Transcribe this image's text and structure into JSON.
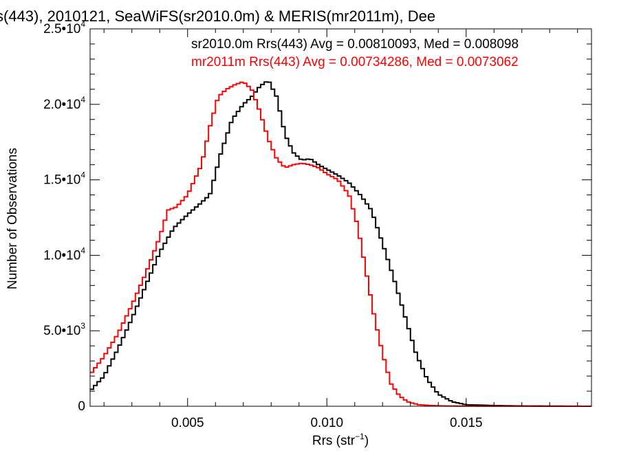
{
  "chart_data": {
    "type": "line",
    "title": "s(443), 2010121, SeaWiFS(sr2010.0m) & MERIS(mr2011m), Dee",
    "xlabel": "Rrs (str",
    "xlabel_sup": "−1",
    "xlabel_suffix": ")",
    "ylabel": "Number of Observations",
    "xlim": [
      0.0015,
      0.0195
    ],
    "ylim": [
      0,
      25000
    ],
    "grid": false,
    "line_style": "step",
    "x_ticks": [
      {
        "value": 0.005,
        "label": "0.005"
      },
      {
        "value": 0.01,
        "label": "0.010"
      },
      {
        "value": 0.015,
        "label": "0.015"
      }
    ],
    "y_ticks": [
      {
        "value": 0,
        "mant": "0",
        "exp": ""
      },
      {
        "value": 5000,
        "mant": "5.0•10",
        "exp": "3"
      },
      {
        "value": 10000,
        "mant": "1.0•10",
        "exp": "4"
      },
      {
        "value": 15000,
        "mant": "1.5•10",
        "exp": "4"
      },
      {
        "value": 20000,
        "mant": "2.0•10",
        "exp": "4"
      },
      {
        "value": 25000,
        "mant": "2.5•10",
        "exp": "4"
      }
    ],
    "annotations": [
      {
        "text": "sr2010.0m Rrs(443) Avg = 0.00810093, Med = 0.008098",
        "color": "#000000"
      },
      {
        "text": "mr2011m Rrs(443) Avg = 0.00734286, Med = 0.0073062",
        "color": "#ff0000"
      }
    ],
    "series": [
      {
        "color": "#000000",
        "x": [
          0.0015,
          0.002,
          0.0025,
          0.003,
          0.0035,
          0.004,
          0.0045,
          0.005,
          0.0055,
          0.0058,
          0.0062,
          0.0066,
          0.007,
          0.0073,
          0.0076,
          0.0079,
          0.0082,
          0.0085,
          0.0088,
          0.0091,
          0.0094,
          0.0097,
          0.01,
          0.0104,
          0.0108,
          0.0112,
          0.0116,
          0.012,
          0.0124,
          0.0128,
          0.0132,
          0.0136,
          0.014,
          0.0145,
          0.015,
          0.016,
          0.017,
          0.0195
        ],
        "y": [
          1000,
          2000,
          3800,
          5800,
          8000,
          10200,
          11800,
          12700,
          13500,
          14000,
          16800,
          19000,
          20000,
          20500,
          21200,
          21600,
          20500,
          18000,
          16800,
          16300,
          16400,
          16000,
          15700,
          15300,
          14800,
          14000,
          13000,
          10800,
          8500,
          6000,
          3500,
          1800,
          800,
          300,
          100,
          50,
          20,
          0
        ]
      },
      {
        "color": "#ff0000",
        "x": [
          0.0015,
          0.002,
          0.0025,
          0.003,
          0.0035,
          0.004,
          0.0043,
          0.0046,
          0.005,
          0.0055,
          0.0058,
          0.0061,
          0.0064,
          0.0067,
          0.007,
          0.0073,
          0.0076,
          0.0079,
          0.0082,
          0.0085,
          0.0088,
          0.0091,
          0.0094,
          0.0097,
          0.01,
          0.0104,
          0.0108,
          0.0111,
          0.0114,
          0.0117,
          0.012,
          0.0123,
          0.0126,
          0.0129,
          0.0133,
          0.0137,
          0.0142,
          0.015,
          0.016,
          0.0195
        ],
        "y": [
          2100,
          3300,
          4800,
          6700,
          8800,
          11200,
          13000,
          13200,
          14000,
          16000,
          18500,
          20500,
          21000,
          21300,
          21500,
          21000,
          19500,
          17700,
          16400,
          15800,
          16000,
          16100,
          16000,
          15800,
          15400,
          15000,
          14000,
          12000,
          9000,
          6000,
          3500,
          1500,
          700,
          300,
          100,
          50,
          20,
          10,
          5,
          0
        ]
      }
    ]
  }
}
